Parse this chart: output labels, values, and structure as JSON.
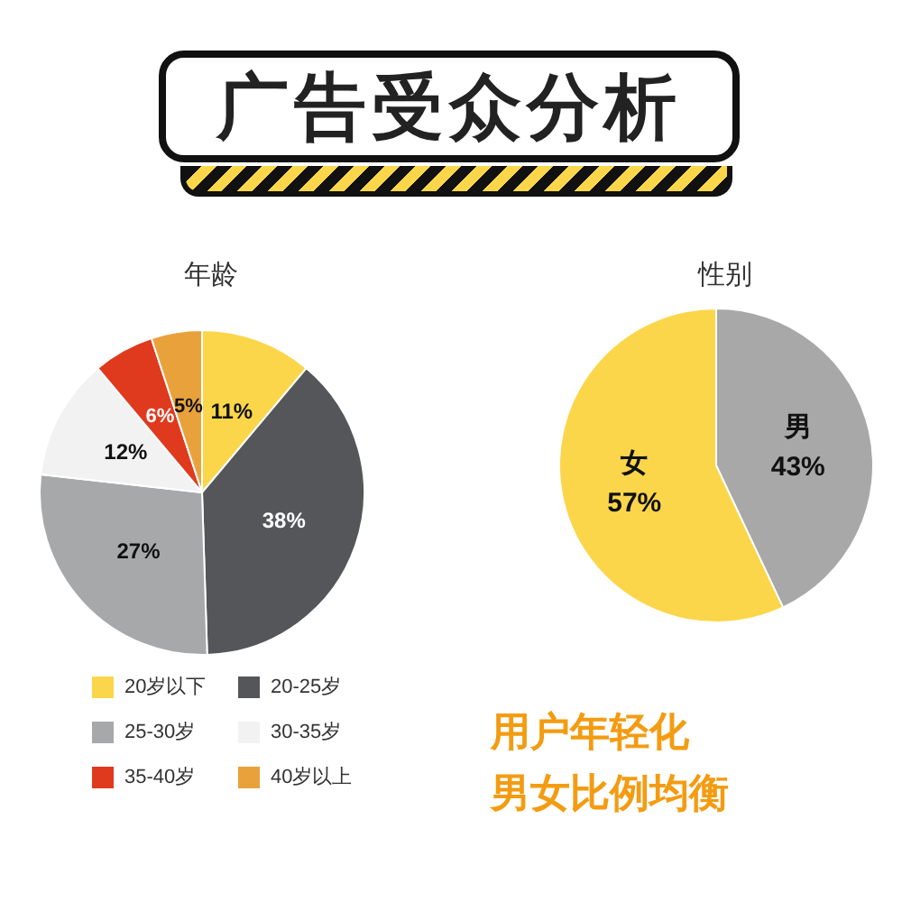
{
  "chart_data": [
    {
      "type": "other",
      "title": "广告受众分析"
    },
    {
      "type": "pie",
      "title": "年龄",
      "categories": [
        "20岁以下",
        "20-25岁",
        "25-30岁",
        "30-35岁",
        "35-40岁",
        "40岁以上"
      ],
      "values": [
        11,
        38,
        27,
        12,
        6,
        5
      ],
      "value_labels": [
        "11%",
        "38%",
        "27%",
        "12%",
        "6%",
        "5%"
      ],
      "colors": [
        "#fcd64a",
        "#54565a",
        "#a7a8aa",
        "#f2f2f2",
        "#e03a1e",
        "#e9a23b"
      ],
      "legend": "bottom"
    },
    {
      "type": "pie",
      "title": "性别",
      "categories": [
        "男",
        "女"
      ],
      "values": [
        43,
        57
      ],
      "value_labels": [
        "43%",
        "57%"
      ],
      "colors": [
        "#a8a8a8",
        "#fcd64a"
      ],
      "annotations": [
        "用户年轻化",
        "男女比例均衡"
      ]
    }
  ]
}
